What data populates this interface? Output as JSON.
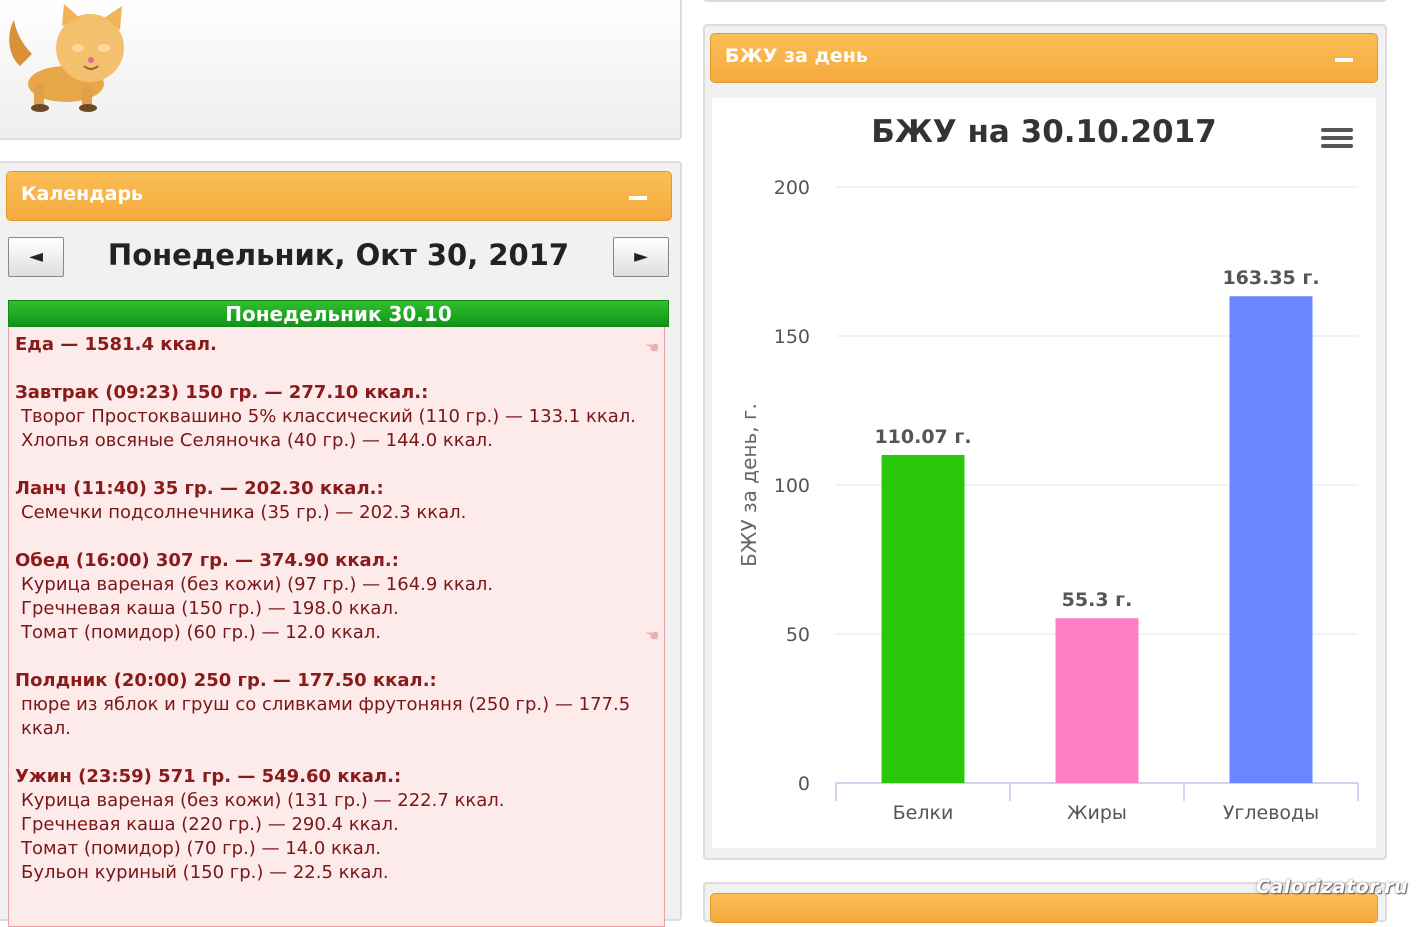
{
  "calendar": {
    "title": "Календарь",
    "date_title": "Понедельник, Окт 30, 2017",
    "prev_label": "◄",
    "next_label": "►",
    "day_header": "Понедельник 30.10"
  },
  "log": {
    "total": "Еда — 1581.4 ккал.",
    "meals": [
      {
        "title": "Завтрак (09:23) 150 гр. — 277.10 ккал.:",
        "items": [
          "Творог Простоквашино 5% классический (110 гр.) — 133.1 ккал.",
          "Хлопья овсяные Селяночка (40 гр.) — 144.0 ккал."
        ]
      },
      {
        "title": "Ланч (11:40) 35 гр. — 202.30 ккал.:",
        "items": [
          "Семечки подсолнечника (35 гр.) — 202.3 ккал."
        ]
      },
      {
        "title": "Обед (16:00) 307 гр. — 374.90 ккал.:",
        "items": [
          "Курица вареная (без кожи) (97 гр.) — 164.9 ккал.",
          "Гречневая каша (150 гр.) — 198.0 ккал.",
          "Томат (помидор) (60 гр.) — 12.0 ккал."
        ]
      },
      {
        "title": "Полдник (20:00) 250 гр. — 177.50 ккал.:",
        "items": [
          "пюре из яблок и груш со сливками фрутоняня (250 гр.) — 177.5 ккал."
        ]
      },
      {
        "title": "Ужин (23:59) 571 гр. — 549.60 ккал.:",
        "items": [
          "Курица вареная (без кожи) (131 гр.) — 222.7 ккал.",
          "Гречневая каша (220 гр.) — 290.4 ккал.",
          "Томат (помидор) (70 гр.) — 14.0 ккал.",
          "Бульон куриный (150 гр.) — 22.5 ккал."
        ]
      }
    ]
  },
  "bju_panel": {
    "title": "БЖУ за день"
  },
  "watermark": "Calorizator.ru",
  "icons": {
    "minus": "minus-icon",
    "menu": "hamburger-menu-icon",
    "cat": "cat-logo-icon"
  },
  "chart_data": {
    "type": "bar",
    "title": "БЖУ на 30.10.2017",
    "ylabel": "БЖУ за день, г.",
    "xlabel": "",
    "categories": [
      "Белки",
      "Жиры",
      "Углеводы"
    ],
    "values": [
      110.07,
      55.3,
      163.35
    ],
    "data_labels": [
      "110.07 г.",
      "55.3 г.",
      "163.35 г."
    ],
    "colors": [
      "#2ac80b",
      "#ff7fc5",
      "#6b87ff"
    ],
    "ylim": [
      0,
      200
    ],
    "yticks": [
      0,
      50,
      100,
      150,
      200
    ],
    "grid": true
  }
}
